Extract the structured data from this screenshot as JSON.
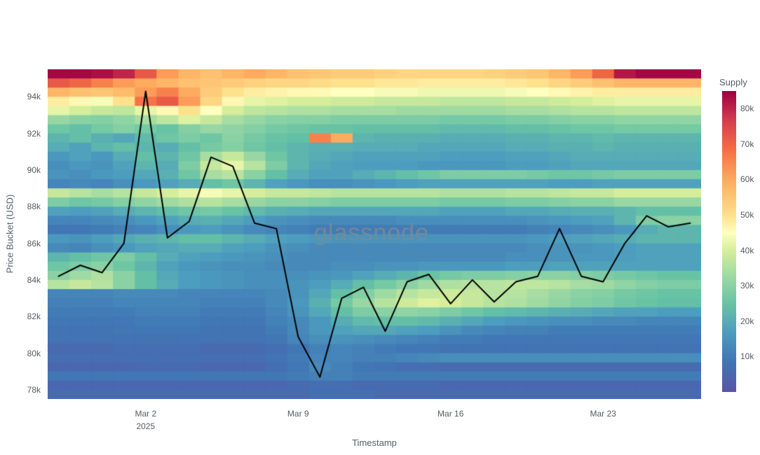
{
  "watermark": "glassnode",
  "axes": {
    "y_title": "Price Bucket (USD)",
    "x_title": "Timestamp",
    "y_ticks": [
      {
        "label": "94k",
        "value": 94
      },
      {
        "label": "92k",
        "value": 92
      },
      {
        "label": "90k",
        "value": 90
      },
      {
        "label": "88k",
        "value": 88
      },
      {
        "label": "86k",
        "value": 86
      },
      {
        "label": "84k",
        "value": 84
      },
      {
        "label": "82k",
        "value": 82
      },
      {
        "label": "80k",
        "value": 80
      },
      {
        "label": "78k",
        "value": 78
      }
    ],
    "x_ticks": [
      {
        "label": "Mar 2",
        "sublabel": "2025",
        "index": 4
      },
      {
        "label": "Mar 9",
        "index": 11
      },
      {
        "label": "Mar 16",
        "index": 18
      },
      {
        "label": "Mar 23",
        "index": 25
      }
    ]
  },
  "colorbar": {
    "title": "Supply",
    "min": 0,
    "max": 85,
    "ticks": [
      {
        "label": "80k",
        "value": 80
      },
      {
        "label": "70k",
        "value": 70
      },
      {
        "label": "60k",
        "value": 60
      },
      {
        "label": "50k",
        "value": 50
      },
      {
        "label": "40k",
        "value": 40
      },
      {
        "label": "30k",
        "value": 30
      },
      {
        "label": "20k",
        "value": 20
      },
      {
        "label": "10k",
        "value": 10
      }
    ],
    "stops": [
      [
        0.0,
        "#5a54a8"
      ],
      [
        0.1,
        "#4075b4"
      ],
      [
        0.2,
        "#4d9dbf"
      ],
      [
        0.29,
        "#66c2a5"
      ],
      [
        0.38,
        "#9ad8a4"
      ],
      [
        0.47,
        "#d5ee9b"
      ],
      [
        0.53,
        "#ffffbf"
      ],
      [
        0.59,
        "#fee08b"
      ],
      [
        0.7,
        "#fdae61"
      ],
      [
        0.81,
        "#f46d43"
      ],
      [
        0.9,
        "#d53e4f"
      ],
      [
        1.0,
        "#9e0142"
      ]
    ]
  },
  "chart_data": {
    "type": "heatmap",
    "title": "",
    "xlabel": "Timestamp",
    "ylabel": "Price Bucket (USD)",
    "zmin": 0,
    "zmax": 85,
    "y_range": [
      77.5,
      95.5
    ],
    "x": [
      "Feb 26",
      "Feb 27",
      "Feb 28",
      "Mar 1",
      "Mar 2",
      "Mar 3",
      "Mar 4",
      "Mar 5",
      "Mar 6",
      "Mar 7",
      "Mar 8",
      "Mar 9",
      "Mar 10",
      "Mar 11",
      "Mar 12",
      "Mar 13",
      "Mar 14",
      "Mar 15",
      "Mar 16",
      "Mar 17",
      "Mar 18",
      "Mar 19",
      "Mar 20",
      "Mar 21",
      "Mar 22",
      "Mar 23",
      "Mar 24",
      "Mar 25",
      "Mar 26",
      "Mar 27"
    ],
    "price_buckets": [
      95.25,
      94.75,
      94.25,
      93.75,
      93.25,
      92.75,
      92.25,
      91.75,
      91.25,
      90.75,
      90.25,
      89.75,
      89.25,
      88.75,
      88.25,
      87.75,
      87.25,
      86.75,
      86.25,
      85.75,
      85.25,
      84.75,
      84.25,
      83.75,
      83.25,
      82.75,
      82.25,
      81.75,
      81.25,
      80.75,
      80.25,
      79.75,
      79.25,
      78.75,
      78.25,
      77.75
    ],
    "supply_matrix": [
      [
        84,
        84,
        83,
        80,
        72,
        62,
        58,
        56,
        58,
        60,
        58,
        56,
        55,
        54,
        54,
        53,
        52,
        52,
        52,
        52,
        53,
        54,
        55,
        58,
        62,
        70,
        82,
        84,
        84,
        84
      ],
      [
        72,
        70,
        66,
        62,
        60,
        58,
        56,
        55,
        54,
        53,
        52,
        52,
        51,
        50,
        50,
        49,
        49,
        48,
        48,
        48,
        48,
        49,
        50,
        52,
        54,
        56,
        58,
        58,
        58,
        58
      ],
      [
        58,
        56,
        55,
        57,
        62,
        66,
        60,
        54,
        50,
        48,
        47,
        46,
        46,
        45,
        45,
        44,
        44,
        43,
        43,
        43,
        43,
        44,
        45,
        46,
        47,
        48,
        48,
        48,
        48,
        48
      ],
      [
        48,
        46,
        44,
        50,
        68,
        72,
        62,
        52,
        46,
        42,
        41,
        40,
        40,
        39,
        39,
        38,
        38,
        38,
        37,
        37,
        37,
        38,
        38,
        39,
        40,
        41,
        42,
        42,
        42,
        42
      ],
      [
        42,
        40,
        38,
        37,
        42,
        46,
        50,
        45,
        40,
        37,
        36,
        35,
        35,
        34,
        34,
        34,
        33,
        33,
        33,
        33,
        33,
        34,
        34,
        35,
        36,
        36,
        37,
        37,
        37,
        37
      ],
      [
        32,
        30,
        29,
        31,
        34,
        37,
        41,
        38,
        34,
        32,
        30,
        29,
        29,
        28,
        28,
        28,
        28,
        28,
        27,
        27,
        27,
        28,
        28,
        29,
        30,
        30,
        31,
        31,
        31,
        31
      ],
      [
        26,
        24,
        27,
        29,
        27,
        25,
        29,
        32,
        31,
        29,
        27,
        26,
        25,
        25,
        24,
        24,
        24,
        24,
        23,
        23,
        23,
        24,
        24,
        25,
        26,
        26,
        27,
        27,
        27,
        27
      ],
      [
        22,
        24,
        21,
        19,
        23,
        26,
        28,
        26,
        30,
        27,
        25,
        24,
        66,
        60,
        22,
        21,
        21,
        21,
        20,
        20,
        20,
        21,
        21,
        22,
        22,
        23,
        22,
        22,
        22,
        22
      ],
      [
        20,
        18,
        22,
        24,
        22,
        20,
        24,
        27,
        29,
        26,
        24,
        22,
        21,
        21,
        20,
        20,
        20,
        19,
        19,
        19,
        19,
        20,
        20,
        21,
        21,
        22,
        21,
        21,
        21,
        21
      ],
      [
        16,
        18,
        16,
        20,
        24,
        22,
        26,
        34,
        38,
        32,
        26,
        22,
        20,
        19,
        18,
        18,
        18,
        18,
        17,
        17,
        17,
        18,
        18,
        19,
        20,
        20,
        20,
        20,
        20,
        20
      ],
      [
        14,
        16,
        15,
        18,
        22,
        20,
        28,
        38,
        42,
        36,
        28,
        22,
        19,
        18,
        17,
        17,
        17,
        16,
        16,
        16,
        16,
        17,
        17,
        18,
        19,
        19,
        19,
        19,
        19,
        19
      ],
      [
        15,
        14,
        16,
        17,
        19,
        21,
        26,
        34,
        36,
        30,
        24,
        20,
        18,
        18,
        20,
        22,
        24,
        26,
        28,
        28,
        28,
        28,
        27,
        26,
        26,
        27,
        28,
        28,
        28,
        28
      ],
      [
        12,
        13,
        12,
        14,
        16,
        18,
        20,
        24,
        26,
        22,
        18,
        16,
        14,
        14,
        15,
        16,
        17,
        18,
        18,
        18,
        18,
        18,
        18,
        17,
        17,
        18,
        18,
        18,
        18,
        18
      ],
      [
        38,
        36,
        34,
        36,
        38,
        40,
        42,
        44,
        42,
        40,
        38,
        38,
        37,
        36,
        36,
        36,
        36,
        36,
        35,
        35,
        35,
        36,
        36,
        37,
        38,
        38,
        40,
        40,
        40,
        40
      ],
      [
        28,
        26,
        27,
        29,
        31,
        33,
        35,
        36,
        34,
        32,
        30,
        30,
        29,
        28,
        28,
        28,
        28,
        28,
        27,
        27,
        27,
        28,
        28,
        29,
        30,
        30,
        32,
        32,
        32,
        32
      ],
      [
        18,
        17,
        18,
        20,
        22,
        24,
        26,
        27,
        25,
        23,
        21,
        20,
        19,
        19,
        19,
        19,
        19,
        19,
        18,
        18,
        18,
        19,
        19,
        20,
        21,
        21,
        22,
        24,
        24,
        24
      ],
      [
        12,
        12,
        13,
        14,
        16,
        18,
        20,
        21,
        19,
        17,
        15,
        14,
        13,
        13,
        13,
        13,
        14,
        14,
        14,
        14,
        14,
        14,
        15,
        16,
        17,
        18,
        22,
        28,
        30,
        30
      ],
      [
        9,
        9,
        10,
        11,
        12,
        14,
        16,
        17,
        15,
        13,
        12,
        11,
        10,
        10,
        10,
        10,
        10,
        10,
        10,
        10,
        10,
        10,
        11,
        12,
        13,
        14,
        16,
        20,
        22,
        22
      ],
      [
        16,
        15,
        17,
        19,
        21,
        22,
        24,
        24,
        22,
        20,
        18,
        17,
        16,
        15,
        15,
        15,
        15,
        15,
        15,
        15,
        15,
        15,
        16,
        17,
        18,
        19,
        20,
        22,
        22,
        22
      ],
      [
        13,
        12,
        14,
        16,
        18,
        19,
        20,
        20,
        18,
        17,
        15,
        14,
        13,
        13,
        13,
        13,
        13,
        13,
        13,
        13,
        13,
        13,
        14,
        15,
        15,
        16,
        17,
        18,
        18,
        18
      ],
      [
        22,
        24,
        26,
        28,
        24,
        20,
        18,
        17,
        16,
        15,
        14,
        13,
        13,
        13,
        13,
        13,
        13,
        13,
        13,
        13,
        13,
        14,
        14,
        15,
        16,
        16,
        17,
        18,
        18,
        18
      ],
      [
        26,
        28,
        30,
        26,
        22,
        18,
        16,
        15,
        14,
        14,
        13,
        13,
        13,
        14,
        14,
        15,
        15,
        16,
        16,
        16,
        16,
        17,
        17,
        18,
        18,
        18,
        18,
        18,
        18,
        18
      ],
      [
        30,
        33,
        35,
        30,
        24,
        19,
        17,
        16,
        15,
        14,
        14,
        14,
        15,
        16,
        18,
        20,
        22,
        25,
        27,
        28,
        28,
        29,
        30,
        30,
        29,
        28,
        27,
        26,
        25,
        25
      ],
      [
        36,
        38,
        36,
        30,
        24,
        20,
        17,
        16,
        15,
        14,
        14,
        15,
        17,
        20,
        24,
        27,
        30,
        33,
        35,
        36,
        36,
        37,
        37,
        36,
        34,
        33,
        31,
        29,
        28,
        28
      ],
      [
        12,
        12,
        12,
        13,
        13,
        13,
        12,
        12,
        12,
        12,
        13,
        15,
        19,
        24,
        29,
        33,
        36,
        38,
        39,
        38,
        36,
        36,
        34,
        32,
        30,
        29,
        27,
        26,
        25,
        25
      ],
      [
        11,
        11,
        11,
        12,
        12,
        12,
        12,
        11,
        11,
        11,
        13,
        16,
        21,
        27,
        32,
        36,
        39,
        41,
        40,
        38,
        36,
        35,
        33,
        31,
        29,
        28,
        26,
        25,
        24,
        24
      ],
      [
        10,
        10,
        10,
        10,
        11,
        11,
        11,
        10,
        10,
        10,
        12,
        15,
        19,
        24,
        28,
        30,
        31,
        30,
        28,
        26,
        24,
        23,
        22,
        21,
        20,
        19,
        18,
        18,
        17,
        17
      ],
      [
        9,
        9,
        9,
        9,
        10,
        10,
        10,
        9,
        9,
        9,
        11,
        13,
        16,
        20,
        23,
        24,
        24,
        23,
        21,
        19,
        17,
        16,
        15,
        14,
        14,
        13,
        13,
        12,
        12,
        12
      ],
      [
        8,
        8,
        8,
        9,
        9,
        9,
        9,
        8,
        8,
        8,
        10,
        13,
        16,
        18,
        19,
        19,
        18,
        17,
        15,
        13,
        12,
        11,
        11,
        10,
        10,
        10,
        10,
        10,
        10,
        10
      ],
      [
        8,
        8,
        8,
        8,
        8,
        8,
        8,
        8,
        8,
        8,
        9,
        12,
        14,
        15,
        14,
        13,
        12,
        11,
        10,
        10,
        9,
        9,
        9,
        9,
        9,
        9,
        9,
        9,
        9,
        9
      ],
      [
        6,
        6,
        6,
        7,
        7,
        7,
        7,
        6,
        6,
        6,
        7,
        9,
        11,
        12,
        11,
        10,
        9,
        9,
        8,
        8,
        8,
        8,
        8,
        8,
        8,
        8,
        8,
        8,
        8,
        8
      ],
      [
        7,
        7,
        7,
        7,
        7,
        7,
        7,
        7,
        7,
        7,
        8,
        10,
        12,
        12,
        11,
        11,
        12,
        13,
        14,
        14,
        14,
        14,
        14,
        14,
        14,
        14,
        14,
        14,
        14,
        14
      ],
      [
        5,
        5,
        5,
        5,
        6,
        6,
        6,
        5,
        5,
        5,
        7,
        9,
        13,
        11,
        9,
        8,
        7,
        7,
        6,
        6,
        6,
        6,
        6,
        6,
        6,
        6,
        6,
        6,
        6,
        6
      ],
      [
        9,
        9,
        9,
        9,
        9,
        9,
        9,
        9,
        9,
        9,
        9,
        10,
        11,
        11,
        10,
        10,
        10,
        10,
        10,
        10,
        10,
        10,
        10,
        10,
        10,
        10,
        10,
        10,
        10,
        10
      ],
      [
        5,
        5,
        5,
        5,
        5,
        5,
        5,
        5,
        5,
        5,
        5,
        6,
        7,
        7,
        6,
        6,
        6,
        6,
        5,
        5,
        5,
        5,
        5,
        5,
        5,
        5,
        5,
        5,
        5,
        5
      ],
      [
        6,
        6,
        6,
        6,
        6,
        6,
        6,
        6,
        6,
        6,
        6,
        6,
        7,
        7,
        7,
        6,
        6,
        6,
        6,
        6,
        6,
        6,
        6,
        6,
        6,
        6,
        6,
        6,
        6,
        6
      ]
    ],
    "overlay_line": {
      "name": "Price",
      "color": "#000000",
      "values": [
        84.2,
        84.8,
        84.4,
        86.0,
        94.3,
        86.3,
        87.2,
        90.7,
        90.2,
        87.1,
        86.8,
        80.9,
        78.7,
        83.0,
        83.6,
        81.2,
        83.9,
        84.3,
        82.7,
        84.0,
        82.8,
        83.9,
        84.2,
        86.8,
        84.2,
        83.9,
        86.0,
        87.5,
        86.9,
        87.1
      ]
    }
  }
}
